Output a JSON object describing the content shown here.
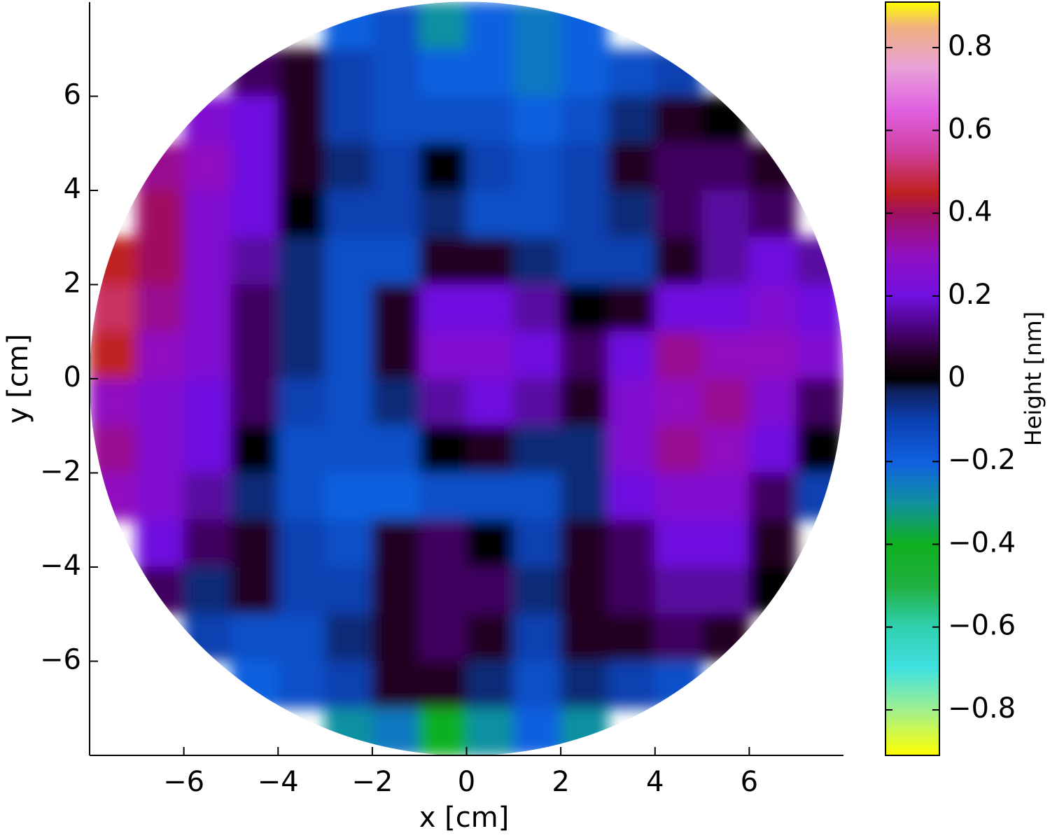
{
  "chart_data": {
    "type": "heatmap",
    "xlabel": "x [cm]",
    "ylabel": "y [cm]",
    "colorbar_label": "Height [nm]",
    "xlim": [
      -8,
      8
    ],
    "ylim": [
      -8,
      8
    ],
    "xticks": [
      {
        "value": -6,
        "label": "−6"
      },
      {
        "value": -4,
        "label": "−4"
      },
      {
        "value": -2,
        "label": "−2"
      },
      0,
      2,
      4,
      6
    ],
    "yticks": [
      {
        "value": -6,
        "label": "−6"
      },
      {
        "value": -4,
        "label": "−4"
      },
      {
        "value": -2,
        "label": "−2"
      },
      0,
      2,
      4,
      6
    ],
    "clim": [
      -0.91,
      0.91
    ],
    "cticks": [
      {
        "value": -0.8,
        "label": "−0.8"
      },
      {
        "value": -0.6,
        "label": "−0.6"
      },
      {
        "value": -0.4,
        "label": "−0.4"
      },
      {
        "value": -0.2,
        "label": "−0.2"
      },
      0,
      0.2,
      0.4,
      0.6,
      0.8
    ],
    "colorscale": [
      [
        -0.91,
        "#ffff00"
      ],
      [
        -0.8,
        "#a0f090"
      ],
      [
        -0.7,
        "#40e0e0"
      ],
      [
        -0.6,
        "#30d0b0"
      ],
      [
        -0.5,
        "#20b040"
      ],
      [
        -0.4,
        "#10b020"
      ],
      [
        -0.3,
        "#1090a0"
      ],
      [
        -0.2,
        "#1060e0"
      ],
      [
        -0.1,
        "#0a40b0"
      ],
      [
        -0.03,
        "#102060"
      ],
      [
        0,
        "#000000"
      ],
      [
        0.05,
        "#200020"
      ],
      [
        0.1,
        "#400060"
      ],
      [
        0.2,
        "#7010e0"
      ],
      [
        0.3,
        "#9010c0"
      ],
      [
        0.4,
        "#a01060"
      ],
      [
        0.45,
        "#c02020"
      ],
      [
        0.55,
        "#d040a0"
      ],
      [
        0.65,
        "#e060e0"
      ],
      [
        0.75,
        "#e8a0d8"
      ],
      [
        0.85,
        "#f0b080"
      ],
      [
        0.91,
        "#ffff00"
      ]
    ],
    "region_radius": 8,
    "x": [
      -7.5,
      -6.5,
      -5.5,
      -4.5,
      -3.5,
      -2.5,
      -1.5,
      -0.5,
      0.5,
      1.5,
      2.5,
      3.5,
      4.5,
      5.5,
      6.5,
      7.5
    ],
    "y": [
      7.5,
      6.5,
      5.5,
      4.5,
      3.5,
      2.5,
      1.5,
      0.5,
      -0.5,
      -1.5,
      -2.5,
      -3.5,
      -4.5,
      -5.5,
      -6.5,
      -7.5
    ],
    "z": [
      [
        null,
        null,
        null,
        null,
        null,
        -0.2,
        -0.15,
        -0.3,
        -0.2,
        -0.25,
        -0.2,
        null,
        null,
        null,
        null,
        null
      ],
      [
        null,
        null,
        null,
        0.1,
        0.05,
        -0.1,
        -0.15,
        -0.2,
        -0.2,
        -0.25,
        -0.2,
        -0.15,
        -0.1,
        null,
        null,
        null
      ],
      [
        null,
        null,
        0.25,
        0.2,
        0.05,
        -0.1,
        -0.15,
        -0.15,
        -0.15,
        -0.2,
        -0.15,
        -0.05,
        0.05,
        0.0,
        null,
        null
      ],
      [
        null,
        0.35,
        0.3,
        0.2,
        0.05,
        -0.05,
        -0.1,
        0.0,
        -0.1,
        -0.15,
        -0.1,
        0.05,
        0.1,
        0.1,
        0.05,
        null
      ],
      [
        null,
        0.4,
        0.25,
        0.2,
        0.0,
        -0.1,
        -0.1,
        -0.05,
        -0.15,
        -0.15,
        -0.1,
        -0.05,
        0.1,
        0.15,
        0.1,
        null
      ],
      [
        0.45,
        0.4,
        0.25,
        0.15,
        -0.05,
        -0.15,
        -0.15,
        0.05,
        0.05,
        -0.05,
        -0.1,
        -0.1,
        0.05,
        0.15,
        0.2,
        0.15
      ],
      [
        0.5,
        0.35,
        0.25,
        0.1,
        -0.05,
        -0.15,
        0.05,
        0.2,
        0.2,
        0.15,
        0.0,
        0.05,
        0.2,
        0.2,
        0.25,
        0.2
      ],
      [
        0.45,
        0.3,
        0.25,
        0.1,
        -0.05,
        -0.15,
        0.05,
        0.25,
        0.25,
        0.2,
        0.1,
        0.2,
        0.35,
        0.3,
        0.3,
        0.25
      ],
      [
        0.3,
        0.25,
        0.2,
        0.1,
        -0.1,
        -0.15,
        -0.05,
        0.15,
        0.2,
        0.15,
        0.05,
        0.25,
        0.3,
        0.35,
        0.25,
        0.1
      ],
      [
        0.35,
        0.25,
        0.2,
        0.0,
        -0.15,
        -0.15,
        -0.15,
        0.0,
        0.05,
        -0.05,
        -0.05,
        0.25,
        0.35,
        0.3,
        0.2,
        0.0
      ],
      [
        0.3,
        0.25,
        0.15,
        -0.05,
        -0.15,
        -0.2,
        -0.2,
        -0.15,
        -0.15,
        -0.15,
        -0.05,
        0.2,
        0.25,
        0.25,
        0.1,
        -0.1
      ],
      [
        null,
        0.2,
        0.1,
        0.05,
        -0.1,
        -0.15,
        0.05,
        0.1,
        0.0,
        -0.1,
        0.05,
        0.1,
        0.2,
        0.2,
        0.05,
        null
      ],
      [
        null,
        0.1,
        -0.05,
        0.05,
        -0.1,
        -0.1,
        0.05,
        0.1,
        0.1,
        -0.05,
        0.05,
        0.1,
        0.15,
        0.15,
        0.0,
        null
      ],
      [
        null,
        null,
        -0.1,
        -0.15,
        -0.15,
        -0.05,
        0.05,
        0.1,
        0.05,
        -0.1,
        0.05,
        0.05,
        0.1,
        0.05,
        null,
        null
      ],
      [
        null,
        null,
        null,
        -0.2,
        -0.15,
        -0.1,
        0.05,
        0.05,
        -0.05,
        -0.15,
        -0.05,
        -0.1,
        -0.15,
        null,
        null,
        null
      ],
      [
        null,
        null,
        null,
        null,
        null,
        -0.3,
        -0.25,
        -0.4,
        -0.3,
        -0.2,
        -0.3,
        null,
        null,
        null,
        null,
        null
      ]
    ]
  }
}
